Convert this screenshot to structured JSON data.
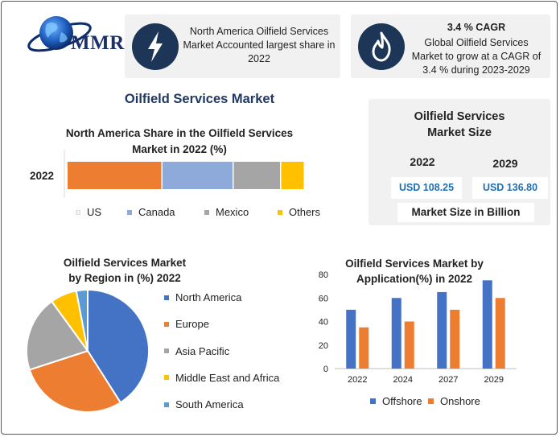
{
  "logo": {
    "text": "MMR"
  },
  "info_cards": [
    {
      "icon": "lightning-icon",
      "lines": [
        "North America Oilfield Services",
        "Market Accounted largest share in",
        "2022"
      ]
    },
    {
      "icon": "flame-icon",
      "title": "3.4 % CAGR",
      "lines": [
        "Global Oilfield Services",
        "Market to grow at a CAGR of",
        "3.4 % during 2023-2029"
      ]
    }
  ],
  "main_title": "Oilfield Services Market",
  "market_size": {
    "title_lines": [
      "Oilfield Services",
      "Market Size"
    ],
    "years": [
      "2022",
      "2029"
    ],
    "values": [
      "USD 108.25",
      "USD 136.80"
    ],
    "footer": "Market Size in Billion"
  },
  "colors": {
    "us": "#ed7d31",
    "canada": "#8eaadb",
    "mexico": "#a5a5a5",
    "others": "#ffc000",
    "blue": "#4472c4",
    "sky": "#5b9bd5",
    "dark_navy": "#1d3557"
  },
  "chart_data": [
    {
      "type": "bar",
      "orientation": "horizontal-stacked",
      "title": "North America Share in the Oilfield Services Market in 2022 (%)",
      "title_lines": [
        "North America Share in the Oilfield Services",
        "Market in 2022 (%)"
      ],
      "categories": [
        "2022"
      ],
      "series": [
        {
          "name": "US",
          "values": [
            40
          ]
        },
        {
          "name": "Canada",
          "values": [
            30
          ]
        },
        {
          "name": "Mexico",
          "values": [
            20
          ]
        },
        {
          "name": "Others",
          "values": [
            10
          ]
        }
      ],
      "legend_position": "bottom"
    },
    {
      "type": "pie",
      "title": "Oilfield Services Market by Region in (%) 2022",
      "title_lines": [
        "Oilfield Services Market",
        "by Region in (%) 2022"
      ],
      "labels": [
        "North America",
        "Europe",
        "Asia Pacific",
        "Middle East and Africa",
        "South America"
      ],
      "values": [
        41,
        29,
        20,
        7,
        3
      ],
      "legend_position": "right"
    },
    {
      "type": "bar",
      "title": "Oilfield Services Market by Application(%) in 2022",
      "title_lines": [
        "Oilfield Services Market by",
        "Application(%) in 2022"
      ],
      "categories": [
        "2022",
        "2024",
        "2027",
        "2029"
      ],
      "series": [
        {
          "name": "Offshore",
          "values": [
            50,
            60,
            65,
            75
          ]
        },
        {
          "name": "Onshore",
          "values": [
            35,
            40,
            50,
            60
          ]
        }
      ],
      "y_ticks": [
        "0",
        "20",
        "40",
        "60",
        "80"
      ],
      "ylim": [
        0,
        80
      ],
      "grid": false,
      "legend_position": "bottom"
    }
  ]
}
